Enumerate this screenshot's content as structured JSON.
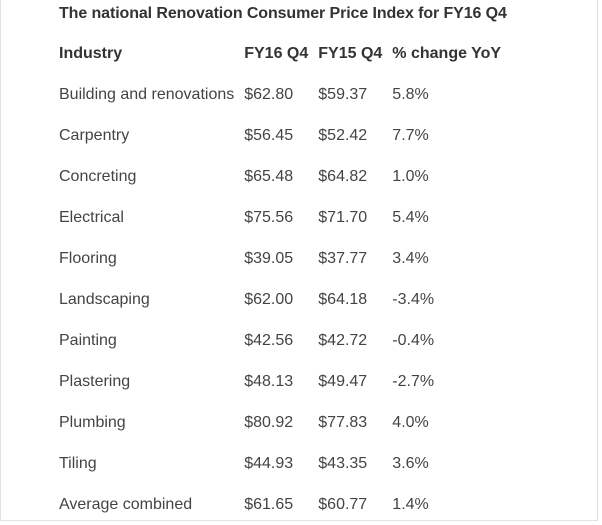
{
  "caption": "The national Renovation Consumer Price Index for FY16 Q4",
  "columns": [
    "Industry",
    "FY16 Q4",
    "FY15 Q4",
    "% change YoY"
  ],
  "rows": [
    [
      "Building and renovations",
      "$62.80",
      "$59.37",
      "5.8%"
    ],
    [
      "Carpentry",
      "$56.45",
      "$52.42",
      "7.7%"
    ],
    [
      "Concreting",
      "$65.48",
      "$64.82",
      "1.0%"
    ],
    [
      "Electrical",
      "$75.56",
      "$71.70",
      "5.4%"
    ],
    [
      "Flooring",
      "$39.05",
      "$37.77",
      "3.4%"
    ],
    [
      "Landscaping",
      "$62.00",
      "$64.18",
      "-3.4%"
    ],
    [
      "Painting",
      "$42.56",
      "$42.72",
      "-0.4%"
    ],
    [
      "Plastering",
      "$48.13",
      "$49.47",
      "-2.7%"
    ],
    [
      "Plumbing",
      "$80.92",
      "$77.83",
      "4.0%"
    ],
    [
      "Tiling",
      "$44.93",
      "$43.35",
      "3.6%"
    ],
    [
      "Average combined",
      "$61.65",
      "$60.77",
      "1.4%"
    ]
  ]
}
